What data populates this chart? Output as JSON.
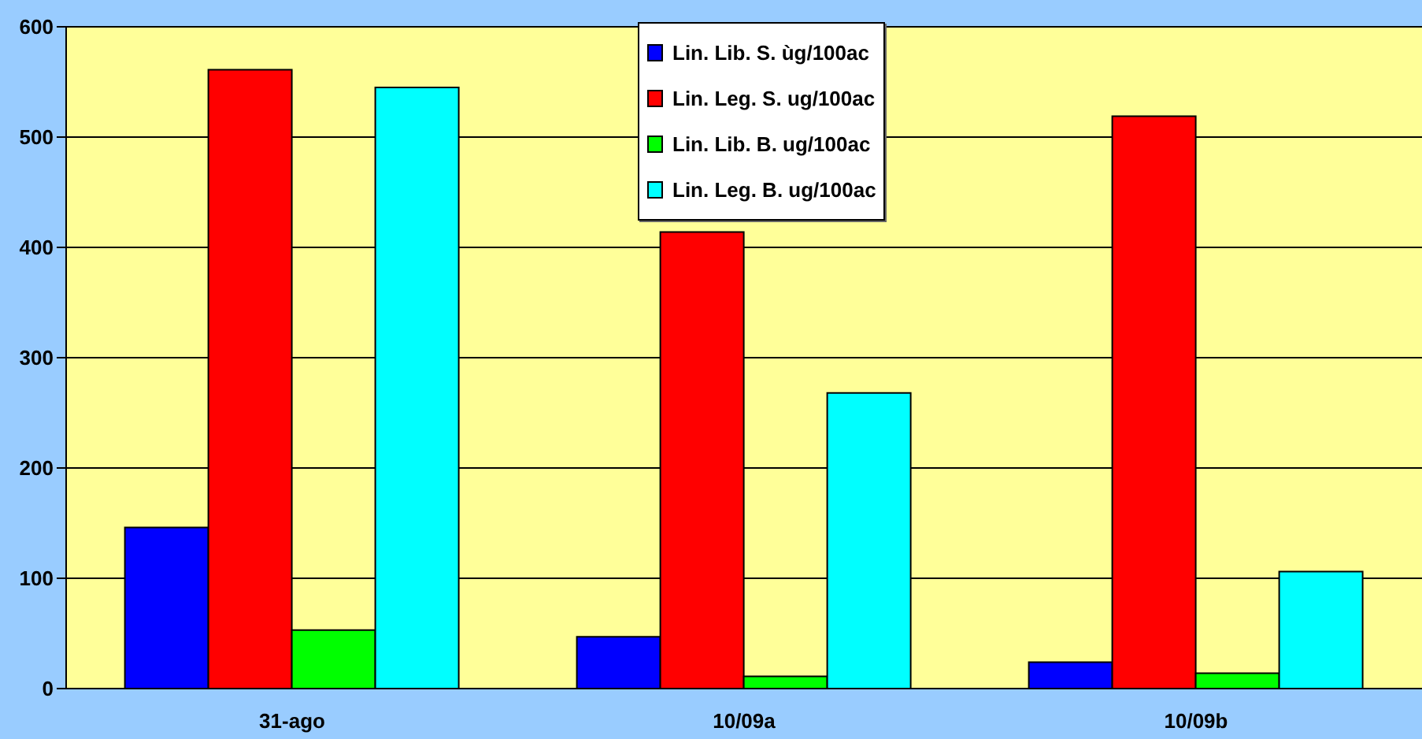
{
  "chart_data": {
    "type": "bar",
    "categories": [
      "31-ago",
      "10/09a",
      "10/09b"
    ],
    "series": [
      {
        "name": "Lin. Lib. S. ùg/100ac",
        "color": "#0000ff",
        "values": [
          146,
          47,
          24
        ]
      },
      {
        "name": "Lin. Leg. S. ug/100ac",
        "color": "#ff0000",
        "values": [
          561,
          414,
          519
        ]
      },
      {
        "name": "Lin. Lib. B. ug/100ac",
        "color": "#00ff00",
        "values": [
          53,
          11,
          14
        ]
      },
      {
        "name": "Lin. Leg. B. ug/100ac",
        "color": "#00ffff",
        "values": [
          545,
          268,
          106
        ]
      }
    ],
    "ylim": [
      0,
      600
    ],
    "yticks": [
      0,
      100,
      200,
      300,
      400,
      500,
      600
    ],
    "grid": "y",
    "legend": "top"
  }
}
